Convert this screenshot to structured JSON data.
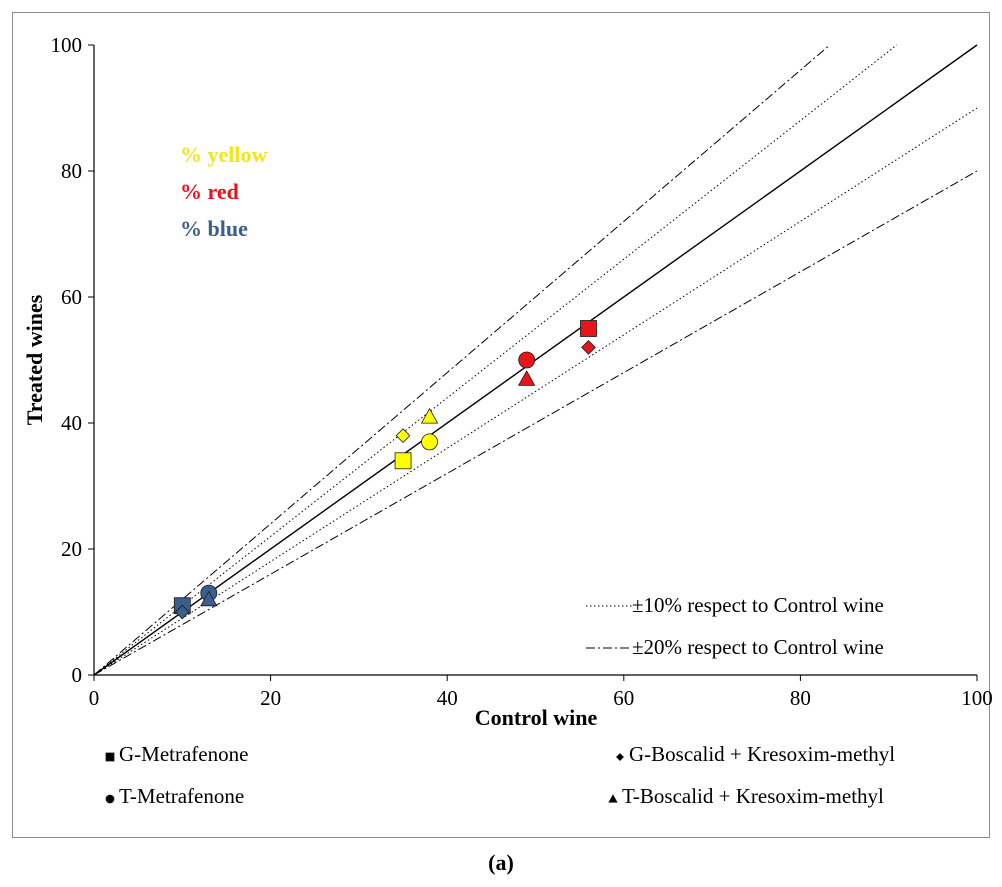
{
  "caption": "(a)",
  "colors": {
    "yellow": "#FFFF00",
    "red": "#E8141C",
    "blue": "#3A5F8F",
    "yellow_text": "#F2E51B"
  },
  "annotations": [
    {
      "text": "% yellow",
      "color": "#F2E51B"
    },
    {
      "text": "% red",
      "color": "#E8141C"
    },
    {
      "text": "% blue",
      "color": "#3A5F8F"
    }
  ],
  "reference_legend": [
    {
      "label": "±10% respect to Control wine",
      "style": "dotted"
    },
    {
      "label": "±20% respect to Control wine",
      "style": "dash-dot"
    }
  ],
  "series_legend": [
    {
      "symbol": "square",
      "label": "G-Metrafenone"
    },
    {
      "symbol": "diamond",
      "label": "G-Boscalid + Kresoxim-methyl"
    },
    {
      "symbol": "circle",
      "label": "T-Metrafenone"
    },
    {
      "symbol": "triangle",
      "label": "T-Boscalid + Kresoxim-methyl"
    }
  ],
  "chart_data": {
    "type": "scatter",
    "title": "",
    "xlabel": "Control wine",
    "ylabel": "Treated wines",
    "xlim": [
      0,
      100
    ],
    "ylim": [
      0,
      100
    ],
    "x_ticks": [
      0,
      20,
      40,
      60,
      80,
      100
    ],
    "y_ticks": [
      0,
      20,
      40,
      60,
      80,
      100
    ],
    "grid": false,
    "reference_lines": [
      {
        "slope": 1.0,
        "style": "solid"
      },
      {
        "slope": 1.1,
        "style": "dotted"
      },
      {
        "slope": 0.9,
        "style": "dotted"
      },
      {
        "slope": 1.2,
        "style": "dash-dot"
      },
      {
        "slope": 0.8,
        "style": "dash-dot"
      }
    ],
    "series": [
      {
        "name": "G-Metrafenone",
        "symbol": "square",
        "points": [
          {
            "x": 10,
            "y": 11,
            "color": "blue"
          },
          {
            "x": 35,
            "y": 34,
            "color": "yellow"
          },
          {
            "x": 56,
            "y": 55,
            "color": "red"
          }
        ]
      },
      {
        "name": "G-Boscalid + Kresoxim-methyl",
        "symbol": "diamond",
        "points": [
          {
            "x": 10,
            "y": 10,
            "color": "blue"
          },
          {
            "x": 35,
            "y": 38,
            "color": "yellow"
          },
          {
            "x": 56,
            "y": 52,
            "color": "red"
          }
        ]
      },
      {
        "name": "T-Metrafenone",
        "symbol": "circle",
        "points": [
          {
            "x": 13,
            "y": 13,
            "color": "blue"
          },
          {
            "x": 38,
            "y": 37,
            "color": "yellow"
          },
          {
            "x": 49,
            "y": 50,
            "color": "red"
          }
        ]
      },
      {
        "name": "T-Boscalid + Kresoxim-methyl",
        "symbol": "triangle",
        "points": [
          {
            "x": 13,
            "y": 12,
            "color": "blue"
          },
          {
            "x": 38,
            "y": 41,
            "color": "yellow"
          },
          {
            "x": 49,
            "y": 47,
            "color": "red"
          }
        ]
      }
    ]
  }
}
